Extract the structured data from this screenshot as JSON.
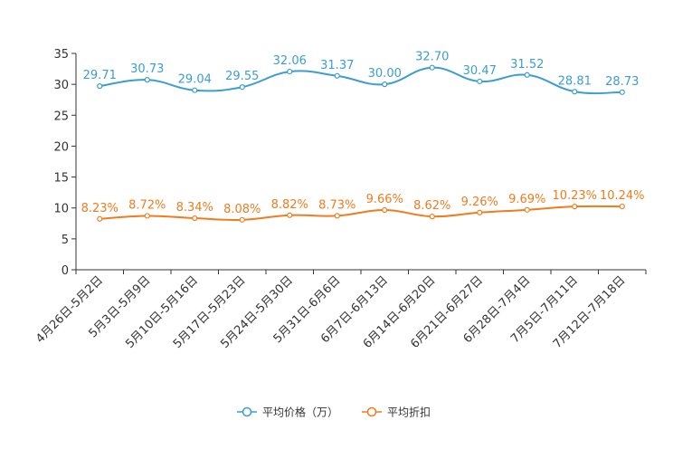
{
  "chart_data": {
    "type": "line",
    "title": "",
    "xlabel": "",
    "ylabel": "",
    "ylim": [
      0,
      35
    ],
    "yticks": [
      0,
      5,
      10,
      15,
      20,
      25,
      30,
      35
    ],
    "grid": false,
    "legend_position": "bottom-center",
    "categories": [
      "4月26日-5月2日",
      "5月3日-5月9日",
      "5月10日-5月16日",
      "5月17日-5月23日",
      "5月24日-5月30日",
      "5月31日-6月6日",
      "6月7日-6月13日",
      "6月14日-6月20日",
      "6月21日-6月27日",
      "6月28日-7月4日",
      "7月5日-7月11日",
      "7月12日-7月18日"
    ],
    "series": [
      {
        "name": "平均价格（万）",
        "color": "#3c9dd0",
        "values": [
          29.71,
          30.73,
          29.04,
          29.55,
          32.06,
          31.37,
          30.0,
          32.7,
          30.47,
          31.52,
          28.81,
          28.73
        ],
        "labels": [
          "29.71",
          "30.73",
          "29.04",
          "29.55",
          "32.06",
          "31.37",
          "30.00",
          "32.70",
          "30.47",
          "31.52",
          "28.81",
          "28.73"
        ]
      },
      {
        "name": "平均折扣",
        "color": "#f07c1e",
        "values": [
          8.23,
          8.72,
          8.34,
          8.08,
          8.82,
          8.73,
          9.66,
          8.62,
          9.26,
          9.69,
          10.23,
          10.24
        ],
        "labels": [
          "8.23%",
          "8.72%",
          "8.34%",
          "8.08%",
          "8.82%",
          "8.73%",
          "9.66%",
          "8.62%",
          "9.26%",
          "9.69%",
          "10.23%",
          "10.24%"
        ]
      }
    ]
  }
}
